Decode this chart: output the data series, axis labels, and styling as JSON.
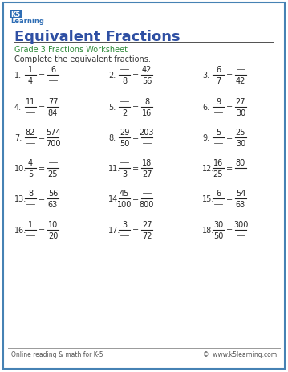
{
  "title": "Equivalent Fractions",
  "subtitle": "Grade 3 Fractions Worksheet",
  "instruction": "Complete the equivalent fractions.",
  "title_color": "#2E4FA3",
  "subtitle_color": "#2E8B3A",
  "border_color": "#4682B4",
  "footer_left": "Online reading & math for K-5",
  "footer_right": "©  www.k5learning.com",
  "problems": [
    {
      "num": "1.",
      "left_n": "1",
      "left_d": "4",
      "right_n": "6",
      "right_d": "",
      "blank": "right_d"
    },
    {
      "num": "2.",
      "left_n": "",
      "left_d": "8",
      "right_n": "42",
      "right_d": "56",
      "blank": "left_n"
    },
    {
      "num": "3.",
      "left_n": "6",
      "left_d": "7",
      "right_n": "",
      "right_d": "42",
      "blank": "right_n"
    },
    {
      "num": "4.",
      "left_n": "11",
      "left_d": "",
      "right_n": "77",
      "right_d": "84",
      "blank": "left_d"
    },
    {
      "num": "5.",
      "left_n": "",
      "left_d": "2",
      "right_n": "8",
      "right_d": "16",
      "blank": "left_n"
    },
    {
      "num": "6.",
      "left_n": "9",
      "left_d": "",
      "right_n": "27",
      "right_d": "30",
      "blank": "left_d"
    },
    {
      "num": "7.",
      "left_n": "82",
      "left_d": "",
      "right_n": "574",
      "right_d": "700",
      "blank": "left_d"
    },
    {
      "num": "8.",
      "left_n": "29",
      "left_d": "50",
      "right_n": "203",
      "right_d": "",
      "blank": "right_d"
    },
    {
      "num": "9.",
      "left_n": "5",
      "left_d": "",
      "right_n": "25",
      "right_d": "30",
      "blank": "left_d"
    },
    {
      "num": "10.",
      "left_n": "4",
      "left_d": "5",
      "right_n": "",
      "right_d": "25",
      "blank": "right_n"
    },
    {
      "num": "11.",
      "left_n": "",
      "left_d": "3",
      "right_n": "18",
      "right_d": "27",
      "blank": "left_n"
    },
    {
      "num": "12.",
      "left_n": "16",
      "left_d": "25",
      "right_n": "80",
      "right_d": "",
      "blank": "right_d"
    },
    {
      "num": "13.",
      "left_n": "8",
      "left_d": "",
      "right_n": "56",
      "right_d": "63",
      "blank": "left_d"
    },
    {
      "num": "14.",
      "left_n": "45",
      "left_d": "100",
      "right_n": "",
      "right_d": "800",
      "blank": "right_n"
    },
    {
      "num": "15.",
      "left_n": "6",
      "left_d": "",
      "right_n": "54",
      "right_d": "63",
      "blank": "left_d"
    },
    {
      "num": "16.",
      "left_n": "1",
      "left_d": "",
      "right_n": "10",
      "right_d": "20",
      "blank": "left_d"
    },
    {
      "num": "17.",
      "left_n": "3",
      "left_d": "",
      "right_n": "27",
      "right_d": "72",
      "blank": "left_d"
    },
    {
      "num": "18.",
      "left_n": "30",
      "left_d": "50",
      "right_n": "300",
      "right_d": "",
      "blank": "right_d"
    }
  ]
}
